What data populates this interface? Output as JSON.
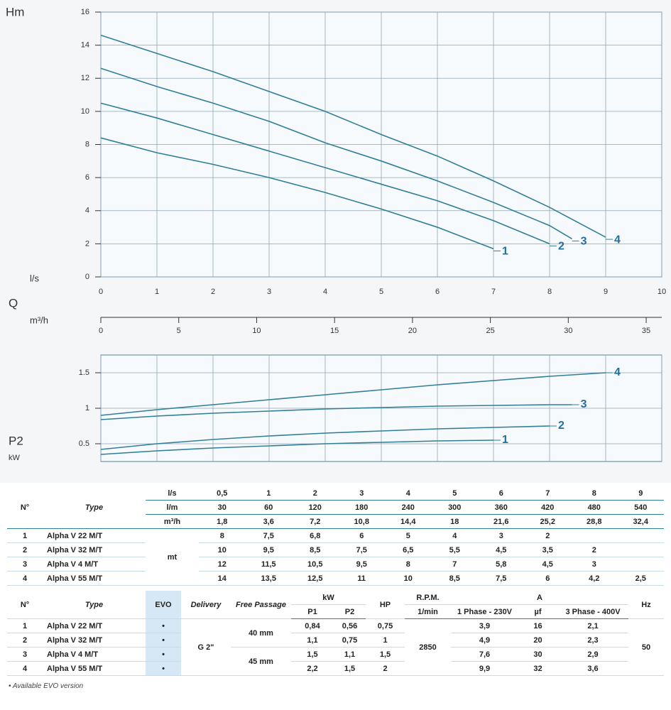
{
  "chart_data": [
    {
      "type": "line",
      "y_label": "Hm",
      "x_label": "l/s",
      "x2_title": "Q",
      "x2_label": "m³/h",
      "xlim": [
        0,
        10
      ],
      "xticks": [
        0,
        1,
        2,
        3,
        4,
        5,
        6,
        7,
        8,
        9,
        10
      ],
      "ylim": [
        0,
        16
      ],
      "yticks": [
        0,
        2,
        4,
        6,
        8,
        10,
        12,
        14,
        16
      ],
      "x2lim": [
        0,
        36
      ],
      "x2ticks": [
        0,
        5,
        10,
        15,
        20,
        25,
        30,
        35
      ],
      "grid": true,
      "series": [
        {
          "name": "1",
          "color": "#2f7f98",
          "x": [
            0,
            1,
            2,
            3,
            4,
            5,
            6,
            7
          ],
          "values": [
            8.4,
            7.5,
            6.8,
            6.0,
            5.1,
            4.1,
            3.0,
            1.7
          ]
        },
        {
          "name": "2",
          "color": "#2f7f98",
          "x": [
            0,
            1,
            2,
            3,
            4,
            5,
            6,
            7,
            8
          ],
          "values": [
            10.5,
            9.6,
            8.6,
            7.6,
            6.6,
            5.6,
            4.6,
            3.4,
            2.0
          ]
        },
        {
          "name": "3",
          "color": "#2f7f98",
          "x": [
            0,
            1,
            2,
            3,
            4,
            5,
            6,
            7,
            8,
            8.4
          ],
          "values": [
            12.6,
            11.5,
            10.5,
            9.4,
            8.1,
            7.0,
            5.8,
            4.5,
            3.1,
            2.3
          ]
        },
        {
          "name": "4",
          "color": "#2f7f98",
          "x": [
            0,
            1,
            2,
            3,
            4,
            5,
            6,
            7,
            8,
            9
          ],
          "values": [
            14.6,
            13.5,
            12.4,
            11.2,
            10.0,
            8.6,
            7.3,
            5.8,
            4.2,
            2.4
          ]
        }
      ]
    },
    {
      "type": "line",
      "y_label": "P2",
      "y_unit": "kW",
      "xlim": [
        0,
        10
      ],
      "xticks": [
        0,
        1,
        2,
        3,
        4,
        5,
        6,
        7,
        8,
        9,
        10
      ],
      "ylim": [
        0.25,
        1.75
      ],
      "yticks": [
        0.5,
        1,
        1.5
      ],
      "grid": true,
      "series": [
        {
          "name": "1",
          "color": "#2f7f98",
          "x": [
            0,
            1,
            2,
            3,
            4,
            5,
            6,
            7
          ],
          "values": [
            0.35,
            0.4,
            0.44,
            0.47,
            0.5,
            0.52,
            0.54,
            0.55
          ]
        },
        {
          "name": "2",
          "color": "#2f7f98",
          "x": [
            0,
            1,
            2,
            3,
            4,
            5,
            6,
            7,
            8
          ],
          "values": [
            0.42,
            0.5,
            0.56,
            0.61,
            0.65,
            0.68,
            0.71,
            0.73,
            0.75
          ]
        },
        {
          "name": "3",
          "color": "#2f7f98",
          "x": [
            0,
            1,
            2,
            3,
            4,
            5,
            6,
            7,
            8,
            8.4
          ],
          "values": [
            0.84,
            0.89,
            0.93,
            0.96,
            0.99,
            1.01,
            1.03,
            1.04,
            1.05,
            1.05
          ]
        },
        {
          "name": "4",
          "color": "#2f7f98",
          "x": [
            0,
            1,
            2,
            3,
            4,
            5,
            6,
            7,
            8,
            9
          ],
          "values": [
            0.9,
            0.98,
            1.05,
            1.12,
            1.19,
            1.26,
            1.33,
            1.39,
            1.45,
            1.5
          ]
        }
      ]
    }
  ],
  "table1": {
    "n": "N°",
    "type": "Type",
    "units": [
      {
        "label": "l/s",
        "values": [
          "0,5",
          "1",
          "2",
          "3",
          "4",
          "5",
          "6",
          "7",
          "8",
          "9"
        ]
      },
      {
        "label": "l/m",
        "values": [
          "30",
          "60",
          "120",
          "180",
          "240",
          "300",
          "360",
          "420",
          "480",
          "540"
        ]
      },
      {
        "label": "m³/h",
        "values": [
          "1,8",
          "3,6",
          "7,2",
          "10,8",
          "14,4",
          "18",
          "21,6",
          "25,2",
          "28,8",
          "32,4"
        ]
      }
    ],
    "unit": "mt",
    "rows": [
      {
        "n": "1",
        "type": "Alpha V 22  M/T",
        "values": [
          "8",
          "7,5",
          "6,8",
          "6",
          "5",
          "4",
          "3",
          "2"
        ]
      },
      {
        "n": "2",
        "type": "Alpha V 32  M/T",
        "values": [
          "10",
          "9,5",
          "8,5",
          "7,5",
          "6,5",
          "5,5",
          "4,5",
          "3,5",
          "2"
        ]
      },
      {
        "n": "3",
        "type": "Alpha V 4  M/T",
        "values": [
          "12",
          "11,5",
          "10,5",
          "9,5",
          "8",
          "7",
          "5,8",
          "4,5",
          "3"
        ]
      },
      {
        "n": "4",
        "type": "Alpha V 55  M/T",
        "values": [
          "14",
          "13,5",
          "12,5",
          "11",
          "10",
          "8,5",
          "7,5",
          "6",
          "4,2",
          "2,5"
        ]
      }
    ]
  },
  "table2": {
    "headers": {
      "n": "N°",
      "type": "Type",
      "evo": "EVO",
      "delivery": "Delivery",
      "passage": "Free Passage",
      "kw": "kW",
      "p1": "P1",
      "p2": "P2",
      "hp": "HP",
      "rpm": "R.P.M.",
      "rpm_unit": "1/min",
      "a": "A",
      "phase1": "1 Phase - 230V",
      "uf": "µf",
      "phase3": "3 Phase - 400V",
      "hz": "Hz"
    },
    "rows": [
      {
        "n": "1",
        "type": "Alpha V 22  M/T",
        "evo": "•",
        "p1": "0,84",
        "p2": "0,56",
        "hp": "0,75",
        "a1": "3,9",
        "uf": "16",
        "a3": "2,1"
      },
      {
        "n": "2",
        "type": "Alpha V 32  M/T",
        "evo": "•",
        "p1": "1,1",
        "p2": "0,75",
        "hp": "1",
        "a1": "4,9",
        "uf": "20",
        "a3": "2,3"
      },
      {
        "n": "3",
        "type": "Alpha V 4  M/T",
        "evo": "•",
        "p1": "1,5",
        "p2": "1,1",
        "hp": "1,5",
        "a1": "7,6",
        "uf": "30",
        "a3": "2,9"
      },
      {
        "n": "4",
        "type": "Alpha V 55  M/T",
        "evo": "•",
        "p1": "2,2",
        "p2": "1,5",
        "hp": "2",
        "a1": "9,9",
        "uf": "32",
        "a3": "3,6"
      }
    ],
    "delivery": "G 2\"",
    "passage": [
      "40 mm",
      "45 mm"
    ],
    "rpm": "2850",
    "hz": "50"
  },
  "footnote": "• Available EVO version"
}
